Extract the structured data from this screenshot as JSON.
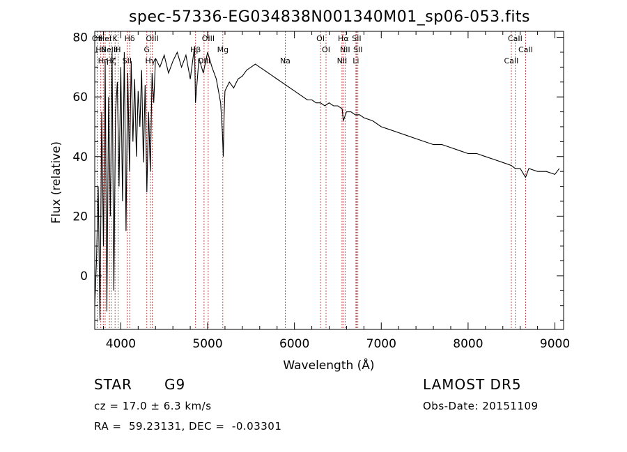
{
  "chart_data": {
    "type": "line",
    "title": "spec-57336-EG034838N001340M01_sp06-053.fits",
    "xlabel": "Wavelength (Å)",
    "ylabel": "Flux (relative)",
    "xlim": [
      3700,
      9100
    ],
    "ylim": [
      -18,
      82
    ],
    "x_ticks": [
      4000,
      5000,
      6000,
      7000,
      8000,
      9000
    ],
    "y_ticks": [
      0,
      20,
      40,
      60,
      80
    ],
    "grid": false,
    "line_color": "#000000",
    "marker_color": "#b22222",
    "series": [
      {
        "x": [
          3700,
          3720,
          3740,
          3760,
          3780,
          3800,
          3820,
          3840,
          3860,
          3880,
          3900,
          3920,
          3940,
          3960,
          3980,
          4000,
          4020,
          4040,
          4060,
          4080,
          4100,
          4120,
          4140,
          4160,
          4180,
          4200,
          4220,
          4240,
          4260,
          4280,
          4300,
          4320,
          4340,
          4360,
          4380,
          4400,
          4450,
          4500,
          4550,
          4600,
          4650,
          4700,
          4750,
          4800,
          4850,
          4860,
          4900,
          4950,
          5000,
          5050,
          5100,
          5150,
          5170,
          5180,
          5190,
          5200,
          5250,
          5300,
          5350,
          5400,
          5450,
          5500,
          5550,
          5600,
          5650,
          5700,
          5750,
          5800,
          5850,
          5900,
          5950,
          6000,
          6050,
          6100,
          6150,
          6200,
          6250,
          6300,
          6350,
          6400,
          6450,
          6500,
          6550,
          6563,
          6600,
          6650,
          6700,
          6750,
          6800,
          6900,
          7000,
          7100,
          7200,
          7300,
          7400,
          7500,
          7600,
          7700,
          7800,
          7900,
          8000,
          8100,
          8200,
          8300,
          8400,
          8498,
          8542,
          8600,
          8662,
          8700,
          8800,
          8900,
          9000,
          9050
        ],
        "y": [
          -10,
          5,
          30,
          -15,
          55,
          10,
          72,
          -12,
          60,
          20,
          75,
          -5,
          55,
          65,
          30,
          70,
          25,
          75,
          15,
          68,
          35,
          72,
          45,
          66,
          40,
          62,
          50,
          69,
          38,
          64,
          28,
          55,
          35,
          68,
          58,
          73,
          70,
          74,
          68,
          72,
          75,
          70,
          74,
          66,
          77,
          58,
          73,
          68,
          75,
          70,
          66,
          58,
          48,
          40,
          54,
          62,
          65,
          63,
          66,
          67,
          69,
          70,
          71,
          70,
          69,
          68,
          67,
          66,
          65,
          64,
          63,
          62,
          61,
          60,
          59,
          59,
          58,
          58,
          57,
          58,
          57,
          57,
          56,
          52,
          55,
          55,
          54,
          54,
          53,
          52,
          50,
          49,
          48,
          47,
          46,
          45,
          44,
          44,
          43,
          42,
          41,
          41,
          40,
          39,
          38,
          37,
          36,
          36,
          33,
          36,
          35,
          35,
          34,
          36
        ]
      }
    ],
    "lines": [
      {
        "wave": 3728,
        "label": "OII"
      },
      {
        "wave": 3770,
        "label": "Hθ"
      },
      {
        "wave": 3798,
        "label": "Hη"
      },
      {
        "wave": 3820,
        "label": "HeI"
      },
      {
        "wave": 3869,
        "label": "NeIII"
      },
      {
        "wave": 3889,
        "label": "Hζ"
      },
      {
        "wave": 3934,
        "label": "K"
      },
      {
        "wave": 3968,
        "label": "H"
      },
      {
        "wave": 4072,
        "label": "SII"
      },
      {
        "wave": 4102,
        "label": "Hδ"
      },
      {
        "wave": 4300,
        "label": "G"
      },
      {
        "wave": 4340,
        "label": "Hγ"
      },
      {
        "wave": 4363,
        "label": "OIII"
      },
      {
        "wave": 4861,
        "label": "Hβ"
      },
      {
        "wave": 4959,
        "label": "OIII"
      },
      {
        "wave": 5007,
        "label": "OIII"
      },
      {
        "wave": 5175,
        "label": "Mg"
      },
      {
        "wave": 5894,
        "label": "Na"
      },
      {
        "wave": 6300,
        "label": "OI"
      },
      {
        "wave": 6364,
        "label": "OI"
      },
      {
        "wave": 6548,
        "label": "NII"
      },
      {
        "wave": 6563,
        "label": "Hα"
      },
      {
        "wave": 6583,
        "label": "NII"
      },
      {
        "wave": 6708,
        "label": "Li"
      },
      {
        "wave": 6716,
        "label": "SII"
      },
      {
        "wave": 6731,
        "label": "SII"
      },
      {
        "wave": 8498,
        "label": "CaII"
      },
      {
        "wave": 8542,
        "label": "CaII"
      },
      {
        "wave": 8662,
        "label": "CaII"
      }
    ]
  },
  "info": {
    "class": "STAR",
    "subclass": "G9",
    "survey": "LAMOST DR5",
    "cz": "cz = 17.0 ± 6.3 km/s",
    "obs_date": "Obs-Date: 20151109",
    "coords": "RA =  59.23131, DEC =  -0.03301"
  }
}
